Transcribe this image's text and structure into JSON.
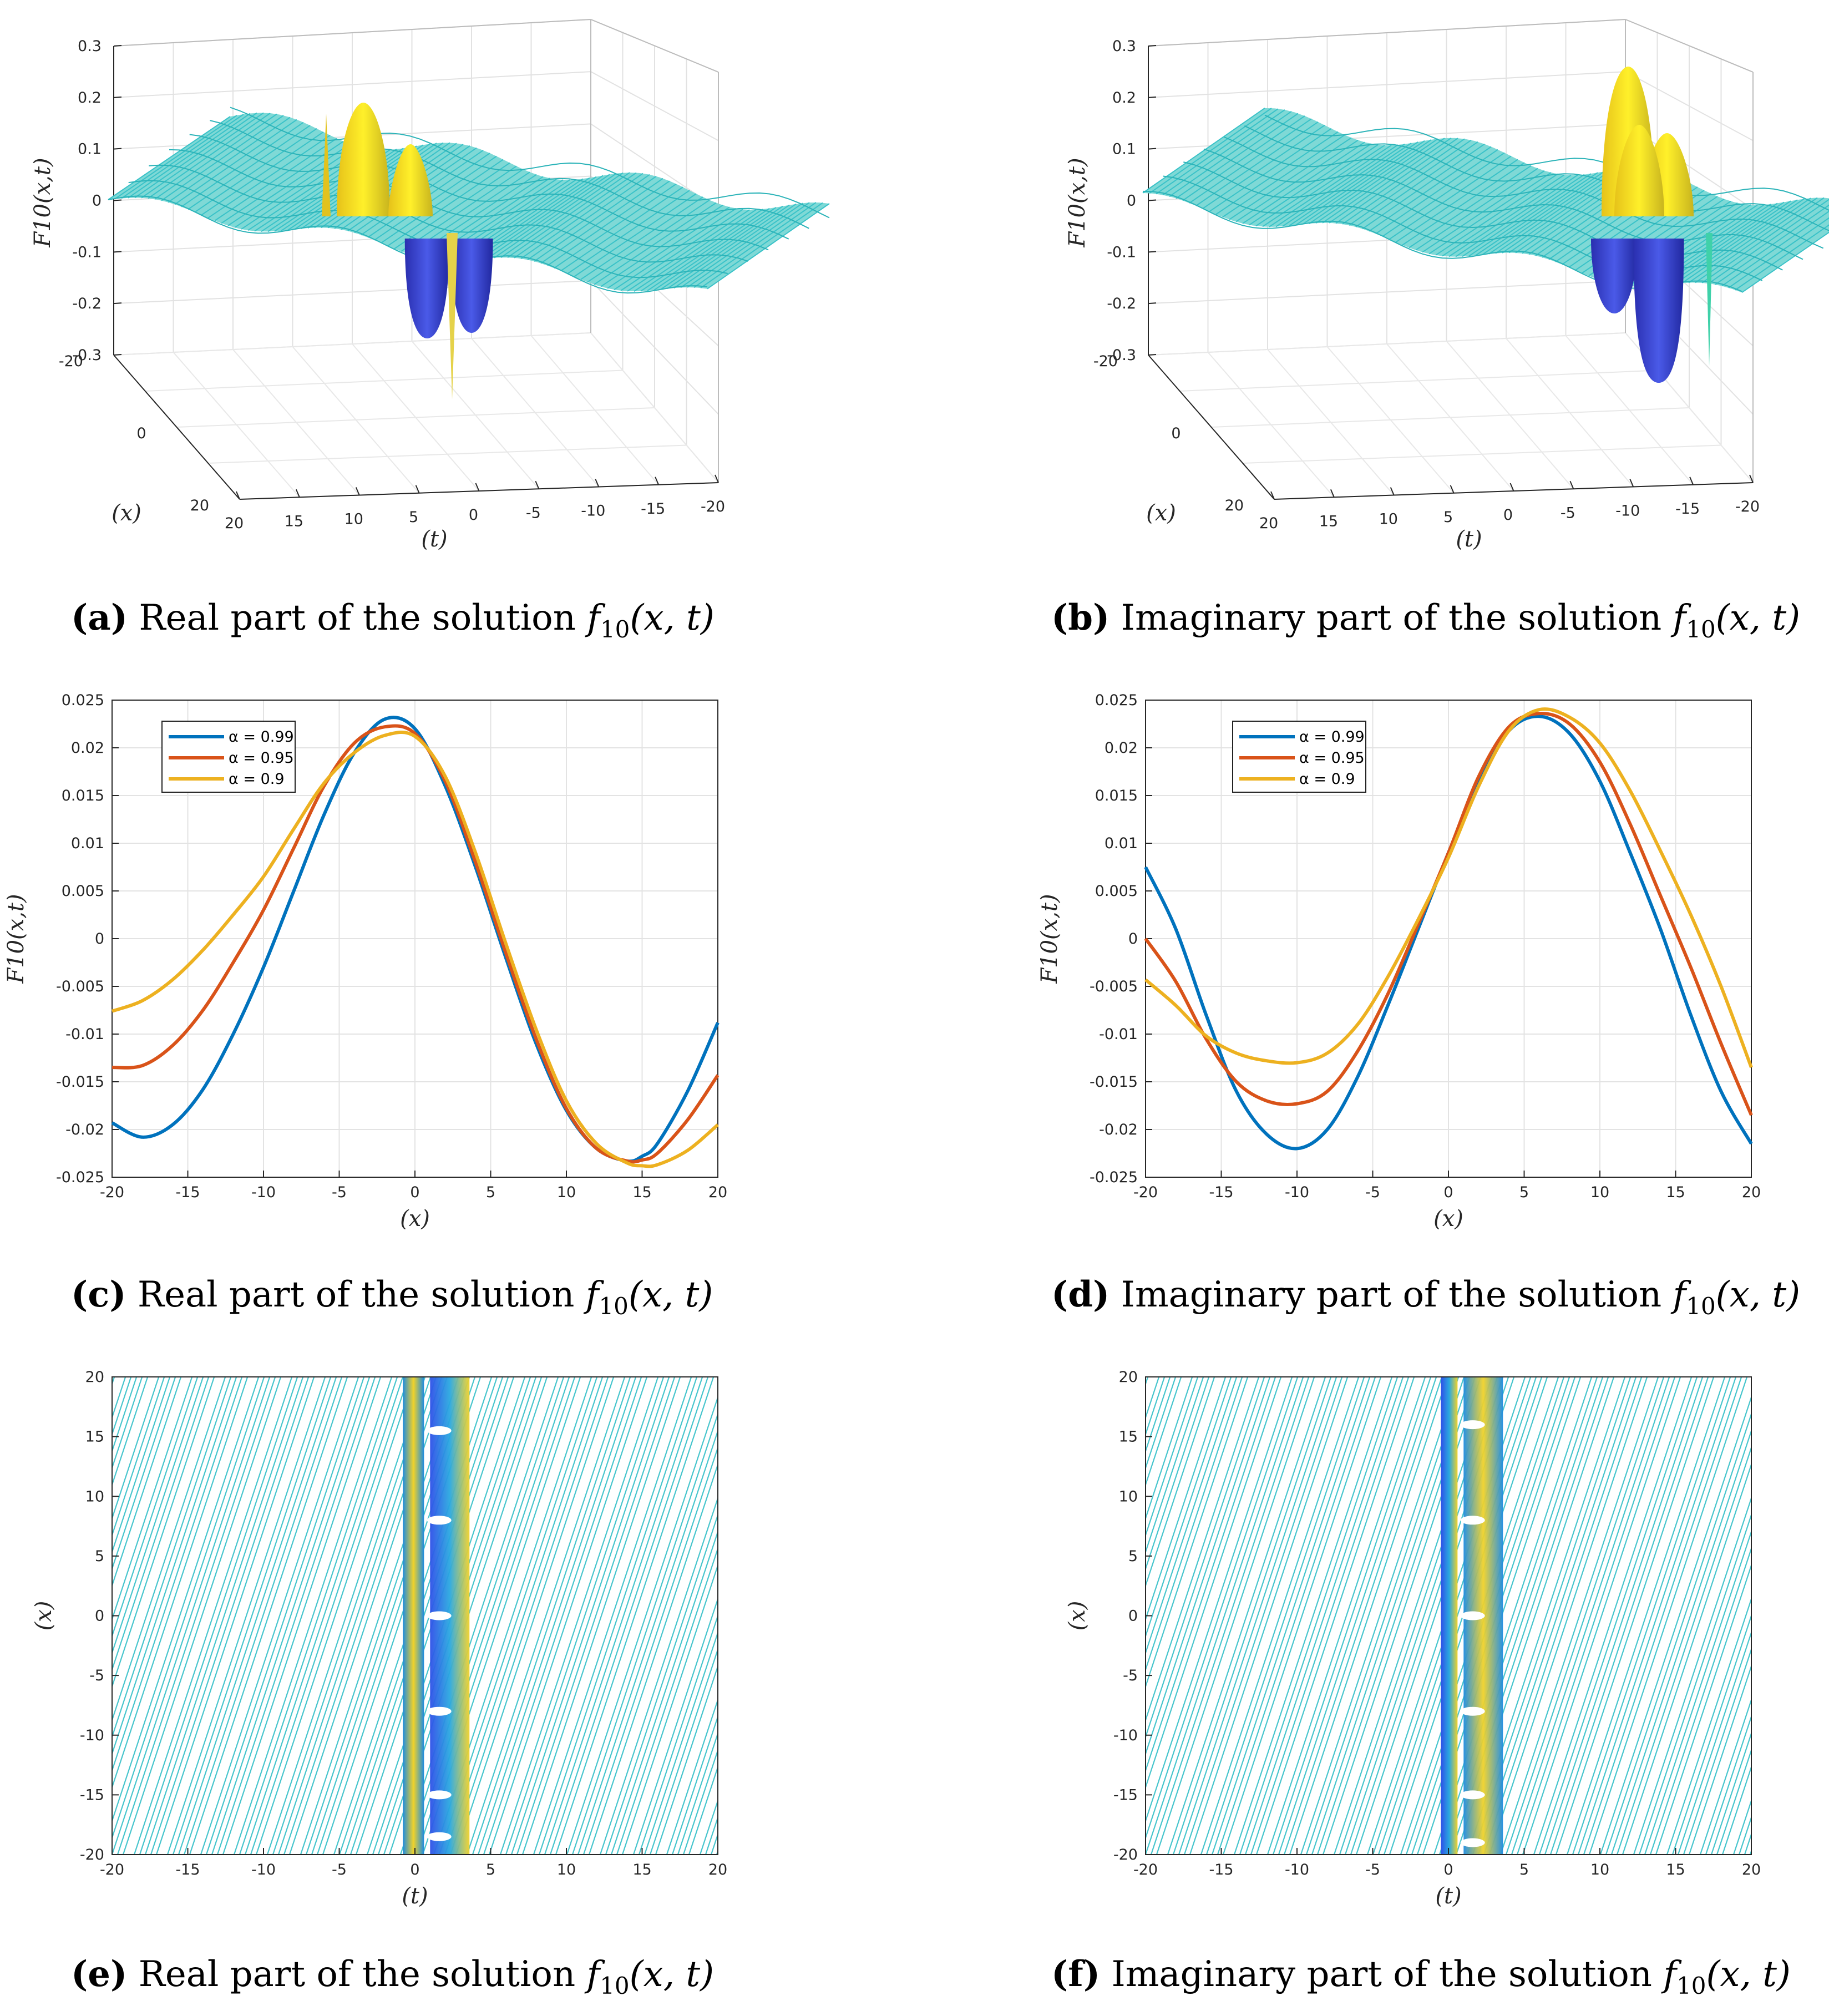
{
  "colors": {
    "series1": "#0072BD",
    "series2": "#D95319",
    "series3": "#EDB120",
    "surface": "#39C2C8",
    "grid": "#e3e3e3",
    "axis": "#262626"
  },
  "captions": {
    "a": {
      "letter": "(a)",
      "text": " Real part of the solution ",
      "fn": "f",
      "sub": "10",
      "args": "(x, t)"
    },
    "b": {
      "letter": "(b)",
      "text": " Imaginary part of the solution ",
      "fn": "f",
      "sub": "10",
      "args": "(x, t)"
    },
    "c": {
      "letter": "(c)",
      "text": " Real part of the solution ",
      "fn": "f",
      "sub": "10",
      "args": "(x, t)"
    },
    "d": {
      "letter": "(d)",
      "text": " Imaginary part of the solution ",
      "fn": "f",
      "sub": "10",
      "args": "(x, t)"
    },
    "e": {
      "letter": "(e)",
      "text": " Real part of the solution ",
      "fn": "f",
      "sub": "10",
      "args": "(x, t)"
    },
    "f": {
      "letter": "(f)",
      "text": " Imaginary part of the solution ",
      "fn": "f",
      "sub": "10",
      "args": "(x, t)"
    }
  },
  "chart_data": [
    {
      "id": "a",
      "type": "surface",
      "zlabel": "F10(x,t)",
      "xlabel": "(x)",
      "ylabel": "(t)",
      "zticks": [
        "0.3",
        "0.2",
        "0.1",
        "0",
        "-0.1",
        "-0.2",
        "-0.3"
      ],
      "xticks": [
        "-20",
        "0",
        "20"
      ],
      "yticks": [
        "20",
        "15",
        "10",
        "5",
        "0",
        "-5",
        "-10",
        "-15",
        "-20"
      ],
      "zlim": [
        -0.3,
        0.3
      ],
      "xlim": [
        -20,
        20
      ],
      "ylim": [
        -20,
        20
      ]
    },
    {
      "id": "b",
      "type": "surface",
      "zlabel": "F10(x,t)",
      "xlabel": "(x)",
      "ylabel": "(t)",
      "zticks": [
        "0.3",
        "0.2",
        "0.1",
        "0",
        "-0.1",
        "-0.2",
        "-0.3"
      ],
      "xticks": [
        "-20",
        "0",
        "20"
      ],
      "yticks": [
        "20",
        "15",
        "10",
        "5",
        "0",
        "-5",
        "-10",
        "-15",
        "-20"
      ],
      "zlim": [
        -0.3,
        0.3
      ],
      "xlim": [
        -20,
        20
      ],
      "ylim": [
        -20,
        20
      ]
    },
    {
      "id": "c",
      "type": "line",
      "xlabel": "(x)",
      "ylabel": "F10(x,t)",
      "xlim": [
        -20,
        20
      ],
      "ylim": [
        -0.025,
        0.025
      ],
      "xticks": [
        "-20",
        "-15",
        "-10",
        "-5",
        "0",
        "5",
        "10",
        "15",
        "20"
      ],
      "yticks": [
        "0.025",
        "0.02",
        "0.015",
        "0.01",
        "0.005",
        "0",
        "-0.005",
        "-0.01",
        "-0.015",
        "-0.02",
        "-0.025"
      ],
      "legend_position": "top-left",
      "series": [
        {
          "name": "α = 0.99",
          "x": [
            -20,
            -18,
            -16,
            -14,
            -12,
            -10,
            -8,
            -6,
            -4,
            -2,
            0,
            2,
            4,
            6,
            8,
            10,
            12,
            14,
            15,
            16,
            18,
            20
          ],
          "y": [
            -0.0193,
            -0.0208,
            -0.0195,
            -0.0158,
            -0.01,
            -0.003,
            0.005,
            0.013,
            0.0195,
            0.023,
            0.022,
            0.016,
            0.0075,
            -0.002,
            -0.011,
            -0.018,
            -0.022,
            -0.0233,
            -0.0228,
            -0.0215,
            -0.016,
            -0.0088
          ]
        },
        {
          "name": "α = 0.95",
          "x": [
            -20,
            -18,
            -16,
            -14,
            -12,
            -10,
            -8,
            -6,
            -4,
            -2,
            0,
            2,
            4,
            6,
            8,
            10,
            12,
            14,
            15,
            16,
            18,
            20
          ],
          "y": [
            -0.0135,
            -0.0133,
            -0.0112,
            -0.0075,
            -0.0025,
            0.003,
            0.0095,
            0.016,
            0.0205,
            0.0222,
            0.0215,
            0.0165,
            0.008,
            -0.0015,
            -0.0105,
            -0.0178,
            -0.022,
            -0.0233,
            -0.0232,
            -0.0225,
            -0.019,
            -0.0143
          ]
        },
        {
          "name": "α = 0.9",
          "x": [
            -20,
            -18,
            -16,
            -14,
            -12,
            -10,
            -8,
            -6,
            -4,
            -2,
            0,
            2,
            4,
            6,
            8,
            10,
            12,
            14,
            15,
            16,
            18,
            20
          ],
          "y": [
            -0.0076,
            -0.0065,
            -0.0043,
            -0.0012,
            0.0025,
            0.0065,
            0.0115,
            0.0163,
            0.0195,
            0.0213,
            0.0212,
            0.017,
            0.009,
            -0.0005,
            -0.0095,
            -0.017,
            -0.0215,
            -0.0235,
            -0.0238,
            -0.0237,
            -0.0222,
            -0.0195
          ]
        }
      ]
    },
    {
      "id": "d",
      "type": "line",
      "xlabel": "(x)",
      "ylabel": "F10(x,t)",
      "xlim": [
        -20,
        20
      ],
      "ylim": [
        -0.025,
        0.025
      ],
      "xticks": [
        "-20",
        "-15",
        "-10",
        "-5",
        "0",
        "5",
        "10",
        "15",
        "20"
      ],
      "yticks": [
        "0.025",
        "0.02",
        "0.015",
        "0.01",
        "0.005",
        "0",
        "-0.005",
        "-0.01",
        "-0.015",
        "-0.02",
        "-0.025"
      ],
      "legend_position": "top-left",
      "series": [
        {
          "name": "α = 0.99",
          "x": [
            -20,
            -18,
            -16,
            -14,
            -12,
            -10,
            -8,
            -6,
            -4,
            -2,
            0,
            2,
            4,
            6,
            8,
            10,
            12,
            14,
            16,
            18,
            20
          ],
          "y": [
            0.0075,
            0.001,
            -0.008,
            -0.016,
            -0.0205,
            -0.022,
            -0.02,
            -0.0145,
            -0.007,
            0.001,
            0.009,
            0.0165,
            0.0218,
            0.0233,
            0.0215,
            0.0165,
            0.009,
            0.001,
            -0.008,
            -0.016,
            -0.0215
          ]
        },
        {
          "name": "α = 0.95",
          "x": [
            -20,
            -18,
            -16,
            -14,
            -12,
            -10,
            -8,
            -6,
            -4,
            -2,
            0,
            2,
            4,
            6,
            8,
            10,
            12,
            14,
            16,
            18,
            20
          ],
          "y": [
            0.0,
            -0.0045,
            -0.0105,
            -0.015,
            -0.017,
            -0.0173,
            -0.016,
            -0.0118,
            -0.0058,
            0.0015,
            0.009,
            0.017,
            0.0222,
            0.0236,
            0.0225,
            0.0185,
            0.012,
            0.0045,
            -0.003,
            -0.011,
            -0.0185
          ]
        },
        {
          "name": "α = 0.9",
          "x": [
            -20,
            -18,
            -16,
            -14,
            -12,
            -10,
            -8,
            -6,
            -4,
            -2,
            0,
            2,
            4,
            6,
            8,
            10,
            12,
            14,
            16,
            18,
            20
          ],
          "y": [
            -0.0043,
            -0.007,
            -0.0102,
            -0.012,
            -0.0128,
            -0.013,
            -0.012,
            -0.009,
            -0.004,
            0.002,
            0.0085,
            0.016,
            0.0218,
            0.024,
            0.0232,
            0.0205,
            0.0155,
            0.0092,
            0.0025,
            -0.005,
            -0.0135
          ]
        }
      ]
    },
    {
      "id": "e",
      "type": "contour",
      "xlabel": "(t)",
      "ylabel": "(x)",
      "xlim": [
        -20,
        20
      ],
      "ylim": [
        -20,
        20
      ],
      "xticks": [
        "-20",
        "-15",
        "-10",
        "-5",
        "0",
        "5",
        "10",
        "15",
        "20"
      ],
      "yticks": [
        "20",
        "15",
        "10",
        "5",
        "0",
        "-5",
        "-10",
        "-15",
        "-20"
      ]
    },
    {
      "id": "f",
      "type": "contour",
      "xlabel": "(t)",
      "ylabel": "(x)",
      "xlim": [
        -20,
        20
      ],
      "ylim": [
        -20,
        20
      ],
      "xticks": [
        "-20",
        "-15",
        "-10",
        "-5",
        "0",
        "5",
        "10",
        "15",
        "20"
      ],
      "yticks": [
        "20",
        "15",
        "10",
        "5",
        "0",
        "-5",
        "-10",
        "-15",
        "-20"
      ]
    }
  ]
}
